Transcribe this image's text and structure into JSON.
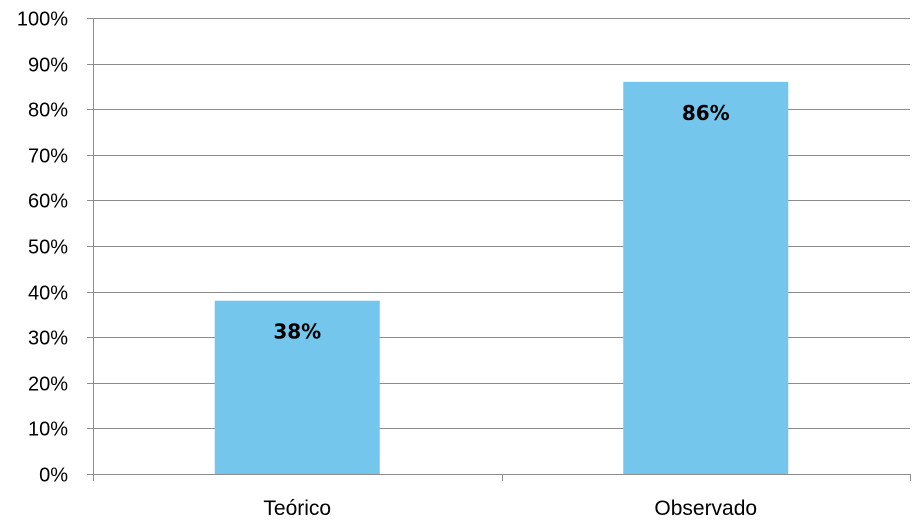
{
  "chart_data": {
    "type": "bar",
    "categories": [
      "Teórico",
      "Observado"
    ],
    "values": [
      38,
      86
    ],
    "data_labels": [
      "38%",
      "86%"
    ],
    "title": "",
    "xlabel": "",
    "ylabel": "",
    "ylim": [
      0,
      100
    ],
    "y_ticks": [
      0,
      10,
      20,
      30,
      40,
      50,
      60,
      70,
      80,
      90,
      100
    ],
    "y_tick_labels": [
      "0%",
      "10%",
      "20%",
      "30%",
      "40%",
      "50%",
      "60%",
      "70%",
      "80%",
      "90%",
      "100%"
    ],
    "grid": true,
    "legend": "none",
    "colors": {
      "bar": "#75C6EC",
      "grid": "#8C8C8C",
      "axis": "#8C8C8C"
    }
  }
}
